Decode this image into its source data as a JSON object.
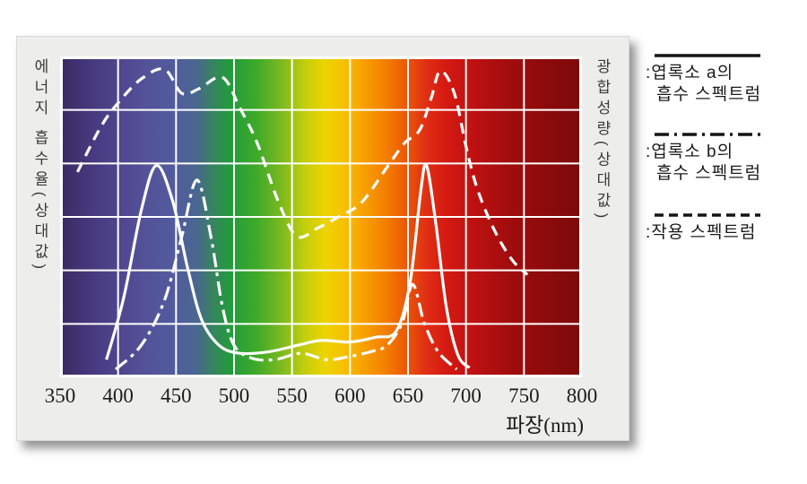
{
  "chart_data": {
    "type": "line",
    "xlabel": "파장(nm)",
    "left_axis_label": "에너지 흡수율(상대값)",
    "right_axis_label": "광합성량(상대값)",
    "xlim": [
      350,
      800
    ],
    "ylim": [
      0,
      1
    ],
    "x_ticks": [
      350,
      400,
      450,
      500,
      550,
      600,
      650,
      700,
      750,
      800
    ],
    "grid": {
      "x_step_nm": 50,
      "y_divisions": 6,
      "color": "#ffffff"
    },
    "line_color": "#ffffff",
    "spectrum_stops": [
      [
        350,
        "#3a2a63"
      ],
      [
        385,
        "#4a3d85"
      ],
      [
        420,
        "#545098"
      ],
      [
        450,
        "#525c9e"
      ],
      [
        468,
        "#49678f"
      ],
      [
        482,
        "#35855c"
      ],
      [
        497,
        "#229c3a"
      ],
      [
        520,
        "#3faa28"
      ],
      [
        542,
        "#7fba1e"
      ],
      [
        560,
        "#c0cd0e"
      ],
      [
        578,
        "#ecd400"
      ],
      [
        595,
        "#f7c000"
      ],
      [
        612,
        "#f8a000"
      ],
      [
        632,
        "#f37c00"
      ],
      [
        650,
        "#ea5405"
      ],
      [
        665,
        "#e03014"
      ],
      [
        682,
        "#d61a12"
      ],
      [
        705,
        "#c01111"
      ],
      [
        735,
        "#a30d0e"
      ],
      [
        770,
        "#8c0a0b"
      ],
      [
        800,
        "#7c090a"
      ]
    ],
    "series": [
      {
        "name": "엽록소 a의 흡수 스펙트럼",
        "style": "solid",
        "points": [
          [
            390,
            0.055
          ],
          [
            405,
            0.25
          ],
          [
            420,
            0.52
          ],
          [
            433,
            0.66
          ],
          [
            447,
            0.55
          ],
          [
            460,
            0.34
          ],
          [
            472,
            0.18
          ],
          [
            487,
            0.1
          ],
          [
            505,
            0.075
          ],
          [
            530,
            0.08
          ],
          [
            555,
            0.1
          ],
          [
            575,
            0.115
          ],
          [
            600,
            0.11
          ],
          [
            622,
            0.125
          ],
          [
            640,
            0.145
          ],
          [
            652,
            0.3
          ],
          [
            661,
            0.58
          ],
          [
            666,
            0.66
          ],
          [
            674,
            0.48
          ],
          [
            683,
            0.22
          ],
          [
            693,
            0.07
          ],
          [
            703,
            0.03
          ]
        ]
      },
      {
        "name": "엽록소 b의 흡수 스펙트럼",
        "style": "dashdot",
        "points": [
          [
            398,
            0.025
          ],
          [
            420,
            0.1
          ],
          [
            440,
            0.24
          ],
          [
            455,
            0.44
          ],
          [
            468,
            0.615
          ],
          [
            480,
            0.44
          ],
          [
            490,
            0.22
          ],
          [
            500,
            0.1
          ],
          [
            515,
            0.06
          ],
          [
            535,
            0.055
          ],
          [
            558,
            0.075
          ],
          [
            580,
            0.055
          ],
          [
            600,
            0.065
          ],
          [
            618,
            0.08
          ],
          [
            632,
            0.1
          ],
          [
            645,
            0.17
          ],
          [
            654,
            0.29
          ],
          [
            664,
            0.17
          ],
          [
            676,
            0.08
          ],
          [
            692,
            0.025
          ]
        ]
      },
      {
        "name": "작용 스펙트럼",
        "style": "dashed",
        "points": [
          [
            365,
            0.64
          ],
          [
            385,
            0.78
          ],
          [
            400,
            0.855
          ],
          [
            420,
            0.93
          ],
          [
            440,
            0.96
          ],
          [
            455,
            0.885
          ],
          [
            470,
            0.9
          ],
          [
            490,
            0.935
          ],
          [
            505,
            0.84
          ],
          [
            520,
            0.73
          ],
          [
            538,
            0.55
          ],
          [
            554,
            0.44
          ],
          [
            572,
            0.465
          ],
          [
            590,
            0.5
          ],
          [
            610,
            0.545
          ],
          [
            632,
            0.655
          ],
          [
            647,
            0.73
          ],
          [
            660,
            0.77
          ],
          [
            670,
            0.87
          ],
          [
            678,
            0.955
          ],
          [
            690,
            0.885
          ],
          [
            700,
            0.72
          ],
          [
            710,
            0.585
          ],
          [
            725,
            0.455
          ],
          [
            740,
            0.365
          ],
          [
            753,
            0.32
          ]
        ]
      }
    ]
  },
  "legend": {
    "entries": [
      {
        "style": "solid",
        "line1": ":엽록소 a의",
        "line2": "흡수 스펙트럼"
      },
      {
        "style": "dashdot",
        "line1": ":엽록소 b의",
        "line2": "흡수 스펙트럼"
      },
      {
        "style": "dashed",
        "line1": ":작용 스펙트럼",
        "line2": ""
      }
    ]
  }
}
